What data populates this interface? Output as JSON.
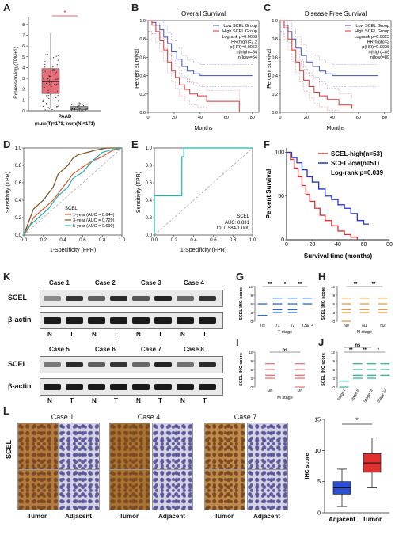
{
  "panels": [
    "A",
    "B",
    "C",
    "D",
    "E",
    "F",
    "K",
    "G",
    "H",
    "I",
    "J",
    "L"
  ],
  "A": {
    "ylabel": "Expression-log₂(TPM+1)",
    "xlabel": "PAAD",
    "footnote": "(num(T)=179; num(N)=171)",
    "asterisk": "*",
    "yticks": [
      "0",
      "1",
      "2",
      "3",
      "4",
      "5",
      "6",
      "7",
      "8"
    ],
    "chart_data": {
      "type": "box",
      "categories": [
        "T",
        "N"
      ],
      "colors": [
        "#e05560",
        "#8a8a8a"
      ],
      "T": {
        "q1": 1.6,
        "median": 2.7,
        "q3": 3.9,
        "whisker_low": 0.2,
        "whisker_high": 7.2
      },
      "N": {
        "q1": 0.1,
        "median": 0.25,
        "q3": 0.4,
        "whisker_low": 0.0,
        "whisker_high": 0.8
      },
      "ylim": [
        0,
        8.5
      ]
    }
  },
  "B": {
    "title": "Overall Survival",
    "ylabel": "Percent survival",
    "xlabel": "Months",
    "legend": [
      "Low SCEL Group",
      "High SCEL Group"
    ],
    "stats": [
      "Logrank p=0.0053",
      "HR(high)=2.2",
      "p(HR)=0.0062",
      "n(high)=54",
      "n(low)=54"
    ],
    "xticks": [
      "0",
      "20",
      "40",
      "60",
      "80"
    ],
    "yticks": [
      "0.0",
      "0.2",
      "0.4",
      "0.6",
      "0.8",
      "1.0"
    ],
    "chart_data": {
      "type": "line",
      "xlim": [
        0,
        85
      ],
      "ylim": [
        0,
        1
      ],
      "series": [
        {
          "name": "Low SCEL Group",
          "color": "#3a4ec8",
          "x": [
            0,
            3,
            6,
            9,
            12,
            15,
            18,
            22,
            26,
            30,
            35,
            40,
            48,
            60,
            80
          ],
          "y": [
            1,
            0.98,
            0.95,
            0.9,
            0.82,
            0.75,
            0.66,
            0.58,
            0.5,
            0.45,
            0.42,
            0.4,
            0.4,
            0.4,
            0.4
          ]
        },
        {
          "name": "High SCEL Group",
          "color": "#e03030",
          "x": [
            0,
            3,
            6,
            9,
            12,
            15,
            18,
            21,
            24,
            28,
            32,
            38,
            45,
            55,
            70
          ],
          "y": [
            1,
            0.95,
            0.88,
            0.78,
            0.68,
            0.55,
            0.45,
            0.38,
            0.3,
            0.25,
            0.2,
            0.18,
            0.12,
            0.12,
            0.0
          ]
        }
      ]
    }
  },
  "C": {
    "title": "Disease Free Survival",
    "ylabel": "Percent survival",
    "xlabel": "Months",
    "legend": [
      "Low SCEL Group",
      "High SCEL Group"
    ],
    "stats": [
      "Logrank p=0.0023",
      "HR(high)=2",
      "p(HR)=0.0026",
      "n(high)=89",
      "n(low)=89"
    ],
    "xticks": [
      "0",
      "20",
      "40",
      "60",
      "80"
    ],
    "yticks": [
      "0.0",
      "0.2",
      "0.4",
      "0.6",
      "0.8",
      "1.0"
    ],
    "chart_data": {
      "type": "line",
      "xlim": [
        0,
        85
      ],
      "ylim": [
        0,
        1
      ],
      "series": [
        {
          "name": "Low SCEL Group",
          "color": "#3a4ec8",
          "x": [
            0,
            3,
            6,
            9,
            12,
            16,
            20,
            25,
            30,
            35,
            40,
            50,
            60,
            75
          ],
          "y": [
            1,
            0.95,
            0.88,
            0.8,
            0.7,
            0.62,
            0.55,
            0.5,
            0.45,
            0.42,
            0.4,
            0.4,
            0.4,
            0.4
          ]
        },
        {
          "name": "High SCEL Group",
          "color": "#e03030",
          "x": [
            0,
            3,
            6,
            9,
            12,
            15,
            18,
            22,
            26,
            30,
            36,
            45,
            55
          ],
          "y": [
            1,
            0.92,
            0.8,
            0.68,
            0.55,
            0.45,
            0.35,
            0.28,
            0.22,
            0.18,
            0.14,
            0.08,
            0.04
          ]
        }
      ]
    }
  },
  "D": {
    "ylabel": "Sensitivity (TPR)",
    "xlabel": "1-Specificity (FPR)",
    "legend_title": "SCEL",
    "legend": [
      "1-year (AUC = 0.644)",
      "3-year (AUC = 0.729)",
      "5-year (AUC = 0.690)"
    ],
    "ticks": [
      "0.0",
      "0.2",
      "0.4",
      "0.6",
      "0.8",
      "1.0"
    ],
    "chart_data": {
      "type": "line",
      "xlim": [
        0,
        1
      ],
      "ylim": [
        0,
        1
      ],
      "series": [
        {
          "name": "1-year (AUC = 0.644)",
          "color": "#e0572b",
          "x": [
            0,
            0.05,
            0.1,
            0.2,
            0.3,
            0.4,
            0.45,
            0.5,
            0.6,
            0.7,
            0.8,
            0.9,
            1
          ],
          "y": [
            0,
            0.08,
            0.2,
            0.3,
            0.4,
            0.55,
            0.62,
            0.7,
            0.78,
            0.85,
            0.9,
            0.97,
            1
          ]
        },
        {
          "name": "3-year (AUC = 0.729)",
          "color": "#7a5220",
          "x": [
            0,
            0.05,
            0.1,
            0.2,
            0.3,
            0.35,
            0.45,
            0.5,
            0.55,
            0.65,
            0.75,
            0.85,
            1
          ],
          "y": [
            0,
            0.15,
            0.3,
            0.4,
            0.55,
            0.7,
            0.8,
            0.88,
            0.92,
            0.95,
            0.98,
            1,
            1
          ]
        },
        {
          "name": "5-year (AUC = 0.690)",
          "color": "#1fb5b5",
          "x": [
            0,
            0.05,
            0.15,
            0.25,
            0.35,
            0.45,
            0.5,
            0.6,
            0.7,
            0.8,
            0.9,
            1
          ],
          "y": [
            0,
            0.1,
            0.2,
            0.3,
            0.45,
            0.55,
            0.65,
            0.72,
            0.85,
            0.95,
            0.98,
            1
          ]
        }
      ]
    }
  },
  "E": {
    "ylabel": "Sensitivity (TPR)",
    "xlabel": "1-Specificity (FPR)",
    "legend_title": "SCEL",
    "legend": [
      "AUC: 0.831",
      "CI: 0.584-1.000"
    ],
    "ticks": [
      "0.0",
      "0.2",
      "0.4",
      "0.6",
      "0.8",
      "1.0"
    ],
    "chart_data": {
      "type": "line",
      "xlim": [
        0,
        1
      ],
      "ylim": [
        0,
        1
      ],
      "series": [
        {
          "color": "#1fb5b5",
          "x": [
            0,
            0,
            0.28,
            0.28,
            0.3,
            0.3,
            1
          ],
          "y": [
            0,
            0.45,
            0.45,
            0.9,
            0.9,
            1,
            1
          ]
        }
      ]
    }
  },
  "F": {
    "ylabel": "Percent Survival",
    "xlabel": "Survival time (months)",
    "legend": [
      "SCEL-high(n=53)",
      "SCEL-low(n=51)"
    ],
    "stat": "Log-rank p=0.039",
    "xticks": [
      "0",
      "20",
      "40",
      "60",
      "80"
    ],
    "yticks": [
      "0",
      "50",
      "100"
    ],
    "chart_data": {
      "type": "line",
      "xlim": [
        0,
        80
      ],
      "ylim": [
        0,
        105
      ],
      "series": [
        {
          "name": "SCEL-high(n=53)",
          "color": "#e03030",
          "x": [
            0,
            3,
            6,
            9,
            12,
            15,
            18,
            22,
            26,
            30,
            35,
            40,
            45,
            50,
            55
          ],
          "y": [
            100,
            92,
            82,
            72,
            62,
            52,
            44,
            36,
            28,
            22,
            16,
            10,
            6,
            3,
            0
          ]
        },
        {
          "name": "SCEL-low(n=51)",
          "color": "#2434c8",
          "x": [
            0,
            4,
            8,
            12,
            16,
            20,
            25,
            30,
            35,
            40,
            45,
            50,
            55,
            60,
            64
          ],
          "y": [
            100,
            94,
            88,
            80,
            72,
            66,
            58,
            50,
            46,
            40,
            36,
            30,
            22,
            18,
            18
          ]
        }
      ]
    }
  },
  "K": {
    "row1_cases": [
      "Case 1",
      "Case 2",
      "Case 3",
      "Case 4"
    ],
    "row2_cases": [
      "Case 5",
      "Case 6",
      "Case 7",
      "Case 8"
    ],
    "scel": "SCEL",
    "actin": "β-actin",
    "n": "N",
    "t": "T"
  },
  "G": {
    "ylabel": "SCEL IHC score",
    "xlabel": "T stage",
    "categories": [
      "Tis",
      "T1",
      "T2",
      "T3&T4"
    ],
    "sig": [
      "**",
      "*",
      "**"
    ],
    "yticks": [
      "0",
      "3",
      "6",
      "9",
      "12"
    ],
    "chart_data": {
      "type": "scatter",
      "color": "#2266cc",
      "levels": [
        3,
        4,
        6,
        8
      ],
      "ylim": [
        0,
        12
      ],
      "points": [
        [
          0,
          2
        ],
        [
          0,
          6
        ],
        [
          1,
          3
        ],
        [
          1,
          4
        ],
        [
          1,
          6
        ],
        [
          1,
          8
        ],
        [
          2,
          3
        ],
        [
          2,
          4
        ],
        [
          2,
          6
        ],
        [
          2,
          8
        ],
        [
          3,
          6
        ],
        [
          3,
          8
        ]
      ]
    }
  },
  "H": {
    "ylabel": "SCEL IHC score",
    "xlabel": "N stage",
    "categories": [
      "N0",
      "N1",
      "N2"
    ],
    "sig": [
      "**",
      "**"
    ],
    "yticks": [
      "0",
      "3",
      "6",
      "9",
      "12"
    ],
    "chart_data": {
      "type": "scatter",
      "color": "#e59a3a",
      "ylim": [
        0,
        12
      ],
      "points": [
        [
          0,
          0
        ],
        [
          0,
          3
        ],
        [
          0,
          4
        ],
        [
          0,
          6
        ],
        [
          0,
          8
        ],
        [
          1,
          3
        ],
        [
          1,
          4
        ],
        [
          1,
          6
        ],
        [
          1,
          8
        ],
        [
          2,
          3
        ],
        [
          2,
          4
        ],
        [
          2,
          6
        ],
        [
          2,
          8
        ]
      ]
    }
  },
  "I": {
    "ylabel": "SCEL IHC score",
    "xlabel": "M stage",
    "categories": [
      "M0",
      "M1"
    ],
    "sig": [
      "ns"
    ],
    "yticks": [
      "0",
      "3",
      "6",
      "9",
      "12"
    ],
    "chart_data": {
      "type": "scatter",
      "color": "#e57070",
      "ylim": [
        0,
        12
      ],
      "points": [
        [
          0,
          3
        ],
        [
          0,
          4
        ],
        [
          0,
          6
        ],
        [
          0,
          8
        ],
        [
          1,
          0
        ],
        [
          1,
          3
        ],
        [
          1,
          4
        ],
        [
          1,
          6
        ],
        [
          1,
          8
        ]
      ]
    }
  },
  "J": {
    "ylabel": "SCEL IHC score",
    "categories": [
      "Stage I",
      "Stage II",
      "Stage III",
      "Stage IV"
    ],
    "sig": [
      "**",
      "**",
      "ns",
      "*"
    ],
    "yticks": [
      "0",
      "3",
      "6",
      "9",
      "12"
    ],
    "chart_data": {
      "type": "scatter",
      "color": "#2fb59b",
      "ylim": [
        0,
        12
      ],
      "points": [
        [
          0,
          0
        ],
        [
          0,
          2
        ],
        [
          1,
          3
        ],
        [
          1,
          4
        ],
        [
          1,
          6
        ],
        [
          1,
          8
        ],
        [
          2,
          3
        ],
        [
          2,
          4
        ],
        [
          2,
          6
        ],
        [
          2,
          8
        ],
        [
          3,
          4
        ],
        [
          3,
          6
        ],
        [
          3,
          8
        ]
      ]
    }
  },
  "L": {
    "cases": [
      "Case 1",
      "Case 4",
      "Case 7"
    ],
    "rowlabel": "SCEL",
    "collabels": [
      "Tumor",
      "Adjacent",
      "Tumor",
      "Adjacent",
      "Tumor",
      "Adjacent"
    ],
    "box": {
      "ylabel": "IHC score",
      "categories": [
        "Adjacent",
        "Tumor"
      ],
      "asterisk": "*",
      "yticks": [
        "0",
        "5",
        "10",
        "15"
      ],
      "chart_data": {
        "type": "box",
        "categories": [
          "Adjacent",
          "Tumor"
        ],
        "colors": [
          "#2a4fd6",
          "#e03030"
        ],
        "Adjacent": {
          "q1": 3,
          "median": 4,
          "q3": 5,
          "whisker_low": 1,
          "whisker_high": 7
        },
        "Tumor": {
          "q1": 6.5,
          "median": 8,
          "q3": 9.5,
          "whisker_low": 4,
          "whisker_high": 12
        },
        "ylim": [
          0,
          15
        ]
      }
    }
  }
}
